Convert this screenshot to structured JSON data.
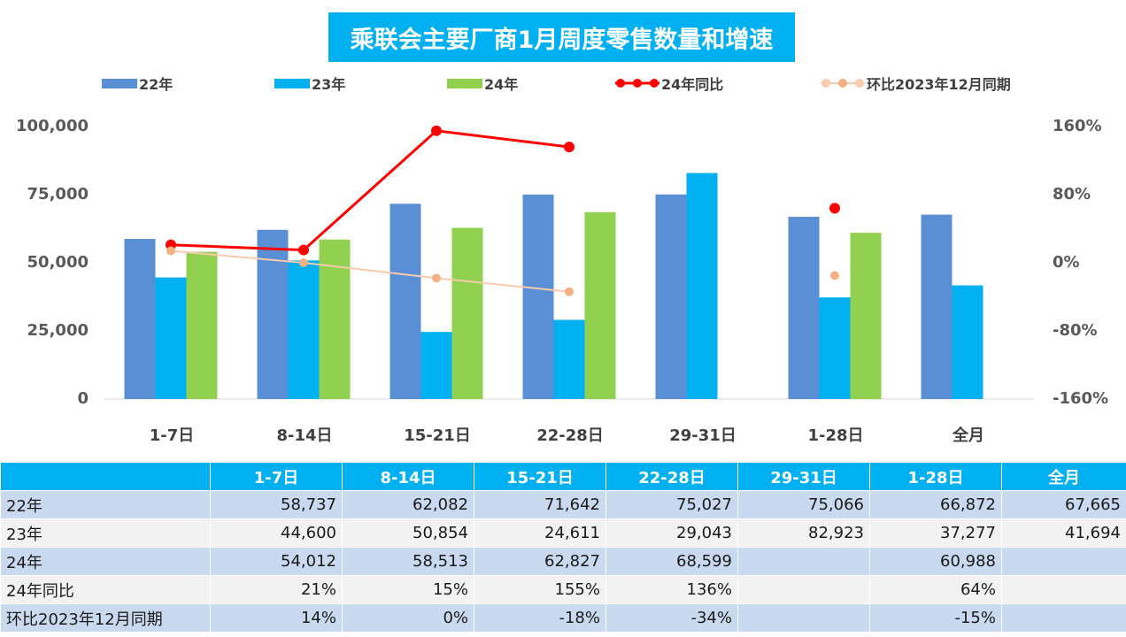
{
  "chart_data": {
    "type": "bar",
    "title": "乘联会主要厂商1月周度零售数量和增速",
    "categories": [
      "1-7日",
      "8-14日",
      "15-21日",
      "22-28日",
      "29-31日",
      "1-28日",
      "全月"
    ],
    "series": [
      {
        "name": "22年",
        "type": "bar",
        "axis": "left",
        "color": "#5a8fd6",
        "values": [
          58737,
          62082,
          71642,
          75027,
          75066,
          66872,
          67665
        ]
      },
      {
        "name": "23年",
        "type": "bar",
        "axis": "left",
        "color": "#00b0f0",
        "values": [
          44600,
          50854,
          24611,
          29043,
          82923,
          37277,
          41694
        ]
      },
      {
        "name": "24年",
        "type": "bar",
        "axis": "left",
        "color": "#92d050",
        "values": [
          54012,
          58513,
          62827,
          68599,
          null,
          60988,
          null
        ]
      },
      {
        "name": "24年同比",
        "type": "line",
        "axis": "right",
        "color": "#ff0000",
        "values": [
          21,
          15,
          155,
          136,
          null,
          64,
          null
        ]
      },
      {
        "name": "环比2023年12月同期",
        "type": "line",
        "axis": "right",
        "color": "#f4b183",
        "values": [
          14,
          0,
          -18,
          -34,
          null,
          -15,
          null
        ]
      }
    ],
    "left_axis": {
      "ylim": [
        0,
        100000
      ],
      "ticks": [
        "0",
        "25,000",
        "50,000",
        "75,000",
        "100,000"
      ]
    },
    "right_axis": {
      "ylim": [
        -160,
        160
      ],
      "ticks": [
        "-160%",
        "-80%",
        "0%",
        "80%",
        "160%"
      ]
    },
    "legend_position": "top",
    "grid": false
  },
  "table": {
    "headers": [
      "",
      "1-7日",
      "8-14日",
      "15-21日",
      "22-28日",
      "29-31日",
      "1-28日",
      "全月"
    ],
    "rows": [
      {
        "label": "22年",
        "cells": [
          "58,737",
          "62,082",
          "71,642",
          "75,027",
          "75,066",
          "66,872",
          "67,665"
        ]
      },
      {
        "label": "23年",
        "cells": [
          "44,600",
          "50,854",
          "24,611",
          "29,043",
          "82,923",
          "37,277",
          "41,694"
        ]
      },
      {
        "label": "24年",
        "cells": [
          "54,012",
          "58,513",
          "62,827",
          "68,599",
          "",
          "60,988",
          ""
        ]
      },
      {
        "label": "24年同比",
        "cells": [
          "21%",
          "15%",
          "155%",
          "136%",
          "",
          "64%",
          ""
        ]
      },
      {
        "label": "环比2023年12月同期",
        "cells": [
          "14%",
          "0%",
          "-18%",
          "-34%",
          "",
          "-15%",
          ""
        ]
      }
    ]
  }
}
